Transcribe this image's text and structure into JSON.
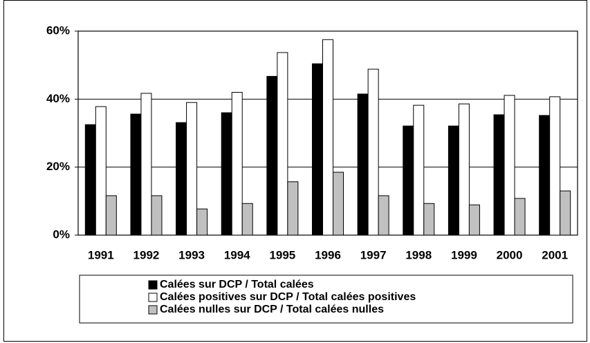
{
  "chart_data": {
    "type": "bar",
    "categories": [
      "1991",
      "1992",
      "1993",
      "1994",
      "1995",
      "1996",
      "1997",
      "1998",
      "1999",
      "2000",
      "2001"
    ],
    "series": [
      {
        "name": "Calées sur DCP / Total calées",
        "color": "#000000",
        "values": [
          32.5,
          35.6,
          33.1,
          36,
          46.7,
          50.4,
          41.5,
          32.1,
          32.1,
          35.4,
          35.2
        ]
      },
      {
        "name": "Calées positives sur DCP / Total calées positives",
        "color": "#ffffff",
        "values": [
          37.8,
          41.7,
          39,
          42,
          53.7,
          57.5,
          48.8,
          38.2,
          38.6,
          41.1,
          40.7
        ]
      },
      {
        "name": "Calées nulles sur DCP / Total calées nulles",
        "color": "#c0c0c0",
        "values": [
          11.6,
          11.6,
          7.7,
          9.3,
          15.7,
          18.5,
          11.6,
          9.3,
          8.9,
          10.8,
          13
        ]
      }
    ],
    "ylim": [
      0,
      60
    ],
    "yticks": [
      {
        "value": 0,
        "label": "0%"
      },
      {
        "value": 20,
        "label": "20%"
      },
      {
        "value": 40,
        "label": "40%"
      },
      {
        "value": 60,
        "label": "60%"
      }
    ],
    "grid": true,
    "legend": "bottom"
  }
}
